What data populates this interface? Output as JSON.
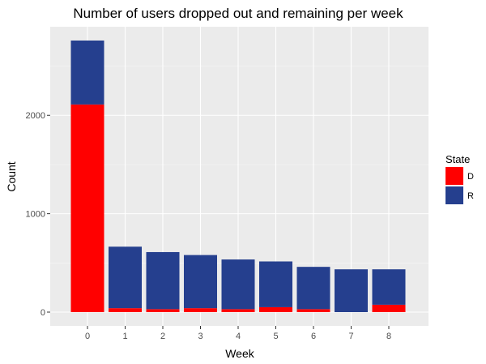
{
  "chart_data": {
    "type": "bar",
    "stacked": true,
    "title": "Number of users dropped out and remaining per week",
    "xlabel": "Week",
    "ylabel": "Count",
    "categories": [
      "0",
      "1",
      "2",
      "3",
      "4",
      "5",
      "6",
      "7",
      "8"
    ],
    "series": [
      {
        "name": "D",
        "color": "#ff0000",
        "values": [
          2110,
          40,
          30,
          40,
          30,
          50,
          30,
          0,
          75
        ]
      },
      {
        "name": "R",
        "color": "#253f8e",
        "values": [
          650,
          625,
          580,
          540,
          505,
          465,
          430,
          435,
          360
        ]
      }
    ],
    "ylim": [
      0,
      2900
    ],
    "yticks": [
      0,
      1000,
      2000
    ],
    "grid": true,
    "legend": {
      "title": "State",
      "position": "right",
      "entries": [
        "D",
        "R"
      ]
    },
    "colors": {
      "panel": "#ebebeb",
      "grid_major": "#ffffff",
      "grid_minor": "#f5f5f5"
    }
  }
}
